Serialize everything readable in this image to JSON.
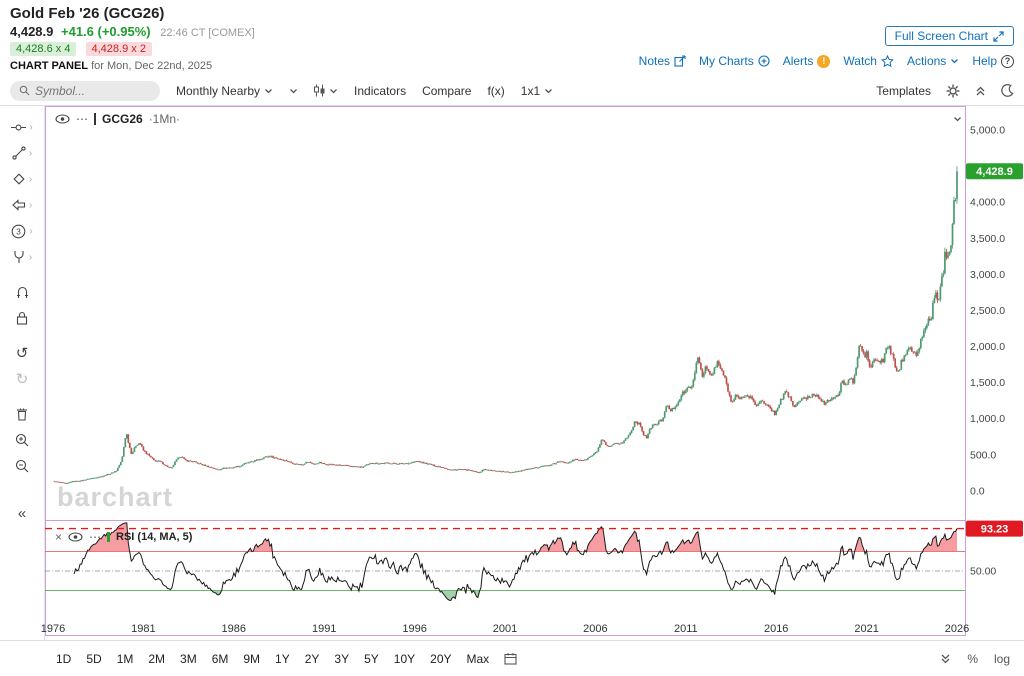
{
  "header": {
    "title": "Gold Feb '26 (GCG26)",
    "last_price": "4,428.9",
    "change": "+41.6 (+0.95%)",
    "quote_time": "22:46 CT [COMEX]",
    "bid_size": "4,428.6 x 4",
    "ask_size": "4,428.9 x 2",
    "panel_label": "CHART PANEL",
    "panel_date": "for Mon, Dec 22nd, 2025",
    "fullscreen_button": "Full Screen Chart",
    "links": [
      {
        "label": "Notes",
        "icon": "notes-icon"
      },
      {
        "label": "My Charts",
        "icon": "add-circle-icon"
      },
      {
        "label": "Alerts",
        "icon": "alert-icon"
      },
      {
        "label": "Watch",
        "icon": "star-icon"
      },
      {
        "label": "Actions",
        "icon": "caret-down-icon"
      },
      {
        "label": "Help",
        "icon": "help-icon"
      }
    ]
  },
  "toolbar": {
    "search_placeholder": "Symbol...",
    "frequency_select": "Monthly Nearby",
    "items": [
      "Indicators",
      "Compare",
      "f(x)",
      "1x1"
    ],
    "templates": "Templates"
  },
  "sidebar": {
    "tools": [
      {
        "name": "crosshair-cursor-tool",
        "submenu": true
      },
      {
        "name": "trendline-tool",
        "submenu": true
      },
      {
        "name": "shapes-tool",
        "submenu": true
      },
      {
        "name": "arrow-annotation-tool",
        "submenu": true
      },
      {
        "name": "elliott-wave-tool",
        "submenu": true
      },
      {
        "name": "pitchfork-tool",
        "submenu": true
      },
      {
        "name": "magnet-tool"
      },
      {
        "name": "lock-drawings-tool"
      },
      {
        "name": "undo"
      },
      {
        "name": "redo"
      },
      {
        "name": "delete-drawings"
      },
      {
        "name": "zoom-in"
      },
      {
        "name": "zoom-out"
      },
      {
        "name": "collapse-toolbar"
      }
    ]
  },
  "chart": {
    "legend_symbol": "GCG26",
    "legend_frequency": "·1Mn·"
  },
  "rsi_panel": {
    "close": "×",
    "label": "RSI (14, MA, 5)",
    "value_badge": "93.23",
    "mid_label": "50.00"
  },
  "bottom_toolbar": {
    "ranges": [
      "1D",
      "5D",
      "1M",
      "2M",
      "3M",
      "6M",
      "9M",
      "1Y",
      "2Y",
      "3Y",
      "5Y",
      "10Y",
      "20Y",
      "Max"
    ],
    "percent_label": "%",
    "log_label": "log"
  },
  "chart_data": {
    "type": "candlestick",
    "title": "Gold Feb '26 (GCG26) — Monthly Nearby",
    "interval": "1Mn",
    "watermark": "barchart",
    "xlim": [
      1976,
      2026
    ],
    "ylim": [
      -320,
      5250
    ],
    "x_ticks": [
      1976,
      1981,
      1986,
      1991,
      1996,
      2001,
      2006,
      2011,
      2016,
      2021,
      2026
    ],
    "y_ticks": [
      {
        "label": "5,000.0",
        "value": 5000
      },
      {
        "label": "4,000.0",
        "value": 4000
      },
      {
        "label": "3,500.0",
        "value": 3500
      },
      {
        "label": "3,000.0",
        "value": 3000
      },
      {
        "label": "2,500.0",
        "value": 2500
      },
      {
        "label": "2,000.0",
        "value": 2000
      },
      {
        "label": "1,500.0",
        "value": 1500
      },
      {
        "label": "1,000.0",
        "value": 1000
      },
      {
        "label": "500.0",
        "value": 500
      },
      {
        "label": "0.0",
        "value": 0
      }
    ],
    "last_price": 4428.9,
    "last_price_label": "4,428.9",
    "up_color": "#4d9970",
    "down_color": "#c0504d",
    "badge_color": "#2aa12e",
    "panel_border_color": "#cf9be0",
    "anchors": [
      [
        1976,
        135
      ],
      [
        1976.4,
        120
      ],
      [
        1976.7,
        104
      ],
      [
        1977,
        132
      ],
      [
        1977.5,
        143
      ],
      [
        1978,
        172
      ],
      [
        1978.6,
        200
      ],
      [
        1978.9,
        220
      ],
      [
        1979.2,
        245
      ],
      [
        1979.5,
        280
      ],
      [
        1979.8,
        420
      ],
      [
        1980.05,
        820
      ],
      [
        1980.2,
        640
      ],
      [
        1980.35,
        510
      ],
      [
        1980.6,
        640
      ],
      [
        1980.8,
        668
      ],
      [
        1981,
        560
      ],
      [
        1981.3,
        490
      ],
      [
        1981.6,
        420
      ],
      [
        1981.9,
        410
      ],
      [
        1982.3,
        340
      ],
      [
        1982.55,
        310
      ],
      [
        1982.8,
        420
      ],
      [
        1983.05,
        490
      ],
      [
        1983.3,
        425
      ],
      [
        1983.7,
        410
      ],
      [
        1984,
        385
      ],
      [
        1984.5,
        345
      ],
      [
        1985.1,
        295
      ],
      [
        1985.5,
        320
      ],
      [
        1985.9,
        325
      ],
      [
        1986.3,
        345
      ],
      [
        1986.7,
        390
      ],
      [
        1987,
        405
      ],
      [
        1987.5,
        450
      ],
      [
        1987.95,
        485
      ],
      [
        1988.4,
        450
      ],
      [
        1988.9,
        420
      ],
      [
        1989.3,
        380
      ],
      [
        1989.7,
        365
      ],
      [
        1990.1,
        405
      ],
      [
        1990.45,
        370
      ],
      [
        1990.7,
        395
      ],
      [
        1991,
        375
      ],
      [
        1991.5,
        365
      ],
      [
        1992,
        355
      ],
      [
        1992.6,
        340
      ],
      [
        1993.1,
        330
      ],
      [
        1993.6,
        390
      ],
      [
        1994,
        383
      ],
      [
        1994.6,
        387
      ],
      [
        1995.1,
        377
      ],
      [
        1995.6,
        385
      ],
      [
        1996.1,
        412
      ],
      [
        1996.6,
        385
      ],
      [
        1997.1,
        350
      ],
      [
        1997.6,
        325
      ],
      [
        1997.95,
        290
      ],
      [
        1998.4,
        300
      ],
      [
        1998.9,
        292
      ],
      [
        1999.3,
        270
      ],
      [
        1999.6,
        256
      ],
      [
        1999.78,
        300
      ],
      [
        2000.1,
        288
      ],
      [
        2000.5,
        278
      ],
      [
        2000.9,
        268
      ],
      [
        2001.25,
        258
      ],
      [
        2001.7,
        277
      ],
      [
        2002.1,
        295
      ],
      [
        2002.6,
        315
      ],
      [
        2003,
        345
      ],
      [
        2003.5,
        355
      ],
      [
        2003.95,
        405
      ],
      [
        2004.4,
        395
      ],
      [
        2004.9,
        435
      ],
      [
        2005.4,
        425
      ],
      [
        2005.9,
        505
      ],
      [
        2006.1,
        555
      ],
      [
        2006.37,
        715
      ],
      [
        2006.6,
        620
      ],
      [
        2006.85,
        615
      ],
      [
        2007.1,
        655
      ],
      [
        2007.5,
        665
      ],
      [
        2007.9,
        790
      ],
      [
        2008.2,
        975
      ],
      [
        2008.5,
        900
      ],
      [
        2008.65,
        790
      ],
      [
        2008.85,
        735
      ],
      [
        2009.1,
        900
      ],
      [
        2009.4,
        930
      ],
      [
        2009.7,
        995
      ],
      [
        2009.95,
        1175
      ],
      [
        2010.2,
        1110
      ],
      [
        2010.5,
        1210
      ],
      [
        2010.8,
        1340
      ],
      [
        2011,
        1390
      ],
      [
        2011.2,
        1430
      ],
      [
        2011.45,
        1520
      ],
      [
        2011.65,
        1880
      ],
      [
        2011.8,
        1720
      ],
      [
        2011.95,
        1590
      ],
      [
        2012.1,
        1720
      ],
      [
        2012.4,
        1580
      ],
      [
        2012.75,
        1770
      ],
      [
        2013,
        1665
      ],
      [
        2013.3,
        1440
      ],
      [
        2013.5,
        1230
      ],
      [
        2013.75,
        1330
      ],
      [
        2014,
        1250
      ],
      [
        2014.2,
        1330
      ],
      [
        2014.6,
        1290
      ],
      [
        2014.9,
        1180
      ],
      [
        2015.1,
        1255
      ],
      [
        2015.45,
        1180
      ],
      [
        2015.75,
        1125
      ],
      [
        2015.95,
        1062
      ],
      [
        2016.2,
        1240
      ],
      [
        2016.5,
        1360
      ],
      [
        2016.75,
        1310
      ],
      [
        2016.95,
        1150
      ],
      [
        2017.3,
        1255
      ],
      [
        2017.7,
        1290
      ],
      [
        2018,
        1335
      ],
      [
        2018.3,
        1330
      ],
      [
        2018.7,
        1190
      ],
      [
        2019,
        1285
      ],
      [
        2019.4,
        1300
      ],
      [
        2019.65,
        1520
      ],
      [
        2019.9,
        1480
      ],
      [
        2020.1,
        1580
      ],
      [
        2020.22,
        1480
      ],
      [
        2020.45,
        1730
      ],
      [
        2020.6,
        2050
      ],
      [
        2020.85,
        1870
      ],
      [
        2021,
        1900
      ],
      [
        2021.2,
        1690
      ],
      [
        2021.4,
        1810
      ],
      [
        2021.7,
        1790
      ],
      [
        2021.95,
        1810
      ],
      [
        2022.15,
        2030
      ],
      [
        2022.4,
        1880
      ],
      [
        2022.6,
        1720
      ],
      [
        2022.75,
        1640
      ],
      [
        2022.95,
        1800
      ],
      [
        2023.1,
        1870
      ],
      [
        2023.3,
        2030
      ],
      [
        2023.55,
        1930
      ],
      [
        2023.75,
        1840
      ],
      [
        2023.95,
        2060
      ],
      [
        2024.15,
        2170
      ],
      [
        2024.3,
        2330
      ],
      [
        2024.55,
        2380
      ],
      [
        2024.8,
        2740
      ],
      [
        2024.95,
        2630
      ],
      [
        2025.1,
        2850
      ],
      [
        2025.25,
        3080
      ],
      [
        2025.35,
        3280
      ],
      [
        2025.5,
        3330
      ],
      [
        2025.65,
        3400
      ],
      [
        2025.78,
        3820
      ],
      [
        2025.87,
        4220
      ],
      [
        2025.93,
        4050
      ],
      [
        2025.99,
        4428.9
      ]
    ],
    "rsi": {
      "period": 14,
      "ma": 5,
      "overbought": 70,
      "oversold": 30,
      "midline": 50,
      "current": 93.23,
      "current_label": "93.23",
      "mid_label": "50.00",
      "overbought_color": "#e06666",
      "oversold_color": "#5aa85a",
      "current_line_color": "#e01a22",
      "badge_color": "#e01a22"
    }
  }
}
